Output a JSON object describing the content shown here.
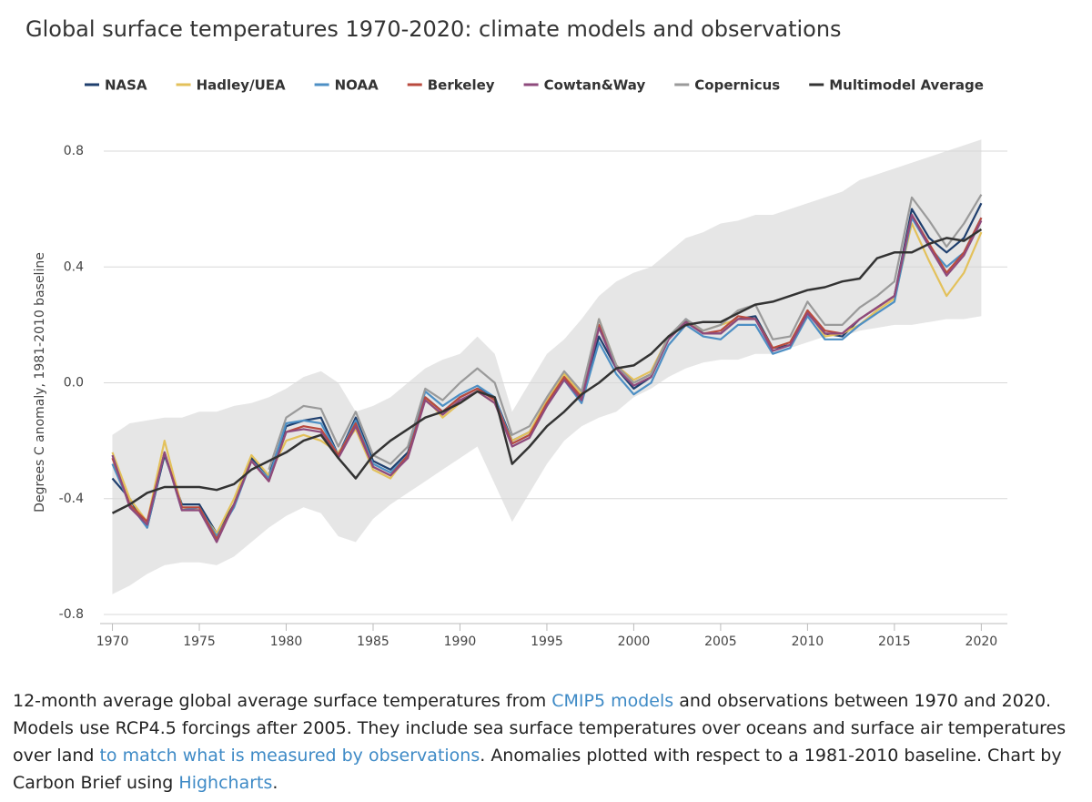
{
  "chart_data": {
    "type": "line",
    "title": "Global surface temperatures 1970-2020: climate models and observations",
    "y_label": "Degrees C anomaly, 1981-2010 baseline",
    "xlim": [
      1969.5,
      2021.5
    ],
    "xticks": [
      1970,
      1975,
      1980,
      1985,
      1990,
      1995,
      2000,
      2005,
      2010,
      2015,
      2020
    ],
    "ylim": [
      -0.8,
      0.8
    ],
    "yticks": [
      -0.8,
      -0.4,
      {
        "value": 0,
        "label": "0.0"
      },
      0.4,
      0.8
    ],
    "grid": true,
    "x": [
      1970,
      1971,
      1972,
      1973,
      1974,
      1975,
      1976,
      1977,
      1978,
      1979,
      1980,
      1981,
      1982,
      1983,
      1984,
      1985,
      1986,
      1987,
      1988,
      1989,
      1990,
      1991,
      1992,
      1993,
      1994,
      1995,
      1996,
      1997,
      1998,
      1999,
      2000,
      2001,
      2002,
      2003,
      2004,
      2005,
      2006,
      2007,
      2008,
      2009,
      2010,
      2011,
      2012,
      2013,
      2014,
      2015,
      2016,
      2017,
      2018,
      2019,
      2020
    ],
    "band": {
      "color": "#e6e6e6",
      "upper": [
        -0.18,
        -0.14,
        -0.13,
        -0.12,
        -0.12,
        -0.1,
        -0.1,
        -0.08,
        -0.07,
        -0.05,
        -0.02,
        0.02,
        0.04,
        0.0,
        -0.1,
        -0.08,
        -0.05,
        0.0,
        0.05,
        0.08,
        0.1,
        0.16,
        0.1,
        -0.1,
        0.0,
        0.1,
        0.15,
        0.22,
        0.3,
        0.35,
        0.38,
        0.4,
        0.45,
        0.5,
        0.52,
        0.55,
        0.56,
        0.58,
        0.58,
        0.6,
        0.62,
        0.64,
        0.66,
        0.7,
        0.72,
        0.74,
        0.76,
        0.78,
        0.8,
        0.82,
        0.84
      ],
      "lower": [
        -0.73,
        -0.7,
        -0.66,
        -0.63,
        -0.62,
        -0.62,
        -0.63,
        -0.6,
        -0.55,
        -0.5,
        -0.46,
        -0.43,
        -0.45,
        -0.53,
        -0.55,
        -0.47,
        -0.42,
        -0.38,
        -0.34,
        -0.3,
        -0.26,
        -0.22,
        -0.35,
        -0.48,
        -0.38,
        -0.28,
        -0.2,
        -0.15,
        -0.12,
        -0.1,
        -0.05,
        -0.02,
        0.02,
        0.05,
        0.07,
        0.08,
        0.08,
        0.1,
        0.1,
        0.12,
        0.14,
        0.16,
        0.16,
        0.18,
        0.19,
        0.2,
        0.2,
        0.21,
        0.22,
        0.22,
        0.23
      ]
    },
    "series": [
      {
        "name": "NASA",
        "color": "#1f3f6e",
        "values": [
          -0.33,
          -0.4,
          -0.5,
          -0.25,
          -0.42,
          -0.42,
          -0.52,
          -0.42,
          -0.26,
          -0.32,
          -0.15,
          -0.13,
          -0.12,
          -0.25,
          -0.12,
          -0.27,
          -0.3,
          -0.24,
          -0.05,
          -0.1,
          -0.05,
          -0.02,
          -0.05,
          -0.2,
          -0.17,
          -0.07,
          0.02,
          -0.06,
          0.16,
          0.05,
          -0.02,
          0.02,
          0.15,
          0.22,
          0.17,
          0.17,
          0.22,
          0.23,
          0.12,
          0.13,
          0.25,
          0.17,
          0.16,
          0.22,
          0.26,
          0.3,
          0.6,
          0.5,
          0.45,
          0.5,
          0.62
        ]
      },
      {
        "name": "Hadley/UEA",
        "color": "#e3c15b",
        "values": [
          -0.24,
          -0.4,
          -0.48,
          -0.2,
          -0.43,
          -0.44,
          -0.52,
          -0.4,
          -0.25,
          -0.32,
          -0.2,
          -0.18,
          -0.2,
          -0.24,
          -0.16,
          -0.3,
          -0.33,
          -0.25,
          -0.05,
          -0.12,
          -0.07,
          -0.03,
          -0.07,
          -0.2,
          -0.17,
          -0.06,
          0.03,
          -0.04,
          0.22,
          0.06,
          0.01,
          0.04,
          0.16,
          0.21,
          0.18,
          0.2,
          0.22,
          0.22,
          0.12,
          0.14,
          0.25,
          0.16,
          0.17,
          0.2,
          0.25,
          0.29,
          0.55,
          0.42,
          0.3,
          0.38,
          0.52
        ]
      },
      {
        "name": "NOAA",
        "color": "#4d8fc4",
        "values": [
          -0.28,
          -0.42,
          -0.5,
          -0.24,
          -0.44,
          -0.43,
          -0.53,
          -0.43,
          -0.27,
          -0.33,
          -0.14,
          -0.13,
          -0.14,
          -0.25,
          -0.13,
          -0.28,
          -0.31,
          -0.25,
          -0.03,
          -0.08,
          -0.04,
          -0.01,
          -0.05,
          -0.21,
          -0.18,
          -0.08,
          0.01,
          -0.07,
          0.14,
          0.03,
          -0.04,
          0.0,
          0.13,
          0.2,
          0.16,
          0.15,
          0.2,
          0.2,
          0.1,
          0.12,
          0.23,
          0.15,
          0.15,
          0.2,
          0.24,
          0.28,
          0.57,
          0.47,
          0.4,
          0.45,
          0.57
        ]
      },
      {
        "name": "Berkeley",
        "color": "#b94a3e",
        "values": [
          -0.26,
          -0.42,
          -0.48,
          -0.24,
          -0.43,
          -0.43,
          -0.54,
          -0.42,
          -0.27,
          -0.34,
          -0.17,
          -0.15,
          -0.16,
          -0.25,
          -0.14,
          -0.29,
          -0.32,
          -0.25,
          -0.05,
          -0.1,
          -0.05,
          -0.02,
          -0.06,
          -0.21,
          -0.18,
          -0.07,
          0.02,
          -0.05,
          0.2,
          0.06,
          0.0,
          0.03,
          0.16,
          0.21,
          0.17,
          0.18,
          0.23,
          0.22,
          0.12,
          0.14,
          0.25,
          0.18,
          0.17,
          0.22,
          0.26,
          0.3,
          0.58,
          0.48,
          0.38,
          0.45,
          0.57
        ]
      },
      {
        "name": "Cowtan&Way",
        "color": "#8e4a7c",
        "values": [
          -0.25,
          -0.43,
          -0.49,
          -0.24,
          -0.44,
          -0.44,
          -0.55,
          -0.42,
          -0.27,
          -0.34,
          -0.17,
          -0.16,
          -0.17,
          -0.26,
          -0.15,
          -0.29,
          -0.32,
          -0.26,
          -0.06,
          -0.11,
          -0.06,
          -0.03,
          -0.07,
          -0.22,
          -0.19,
          -0.08,
          0.01,
          -0.06,
          0.19,
          0.05,
          -0.01,
          0.02,
          0.15,
          0.21,
          0.17,
          0.17,
          0.22,
          0.22,
          0.11,
          0.13,
          0.24,
          0.17,
          0.17,
          0.22,
          0.26,
          0.3,
          0.58,
          0.47,
          0.37,
          0.44,
          0.56
        ]
      },
      {
        "name": "Copernicus",
        "color": "#9a9a9a",
        "values": [
          null,
          null,
          null,
          null,
          null,
          null,
          null,
          null,
          null,
          -0.3,
          -0.12,
          -0.08,
          -0.09,
          -0.22,
          -0.1,
          -0.25,
          -0.28,
          -0.22,
          -0.02,
          -0.06,
          0.0,
          0.05,
          0.0,
          -0.18,
          -0.15,
          -0.05,
          0.04,
          -0.03,
          0.22,
          0.06,
          0.0,
          0.03,
          0.16,
          0.22,
          0.18,
          0.2,
          0.25,
          0.27,
          0.15,
          0.16,
          0.28,
          0.2,
          0.2,
          0.26,
          0.3,
          0.35,
          0.64,
          0.56,
          0.47,
          0.55,
          0.65
        ]
      },
      {
        "name": "Multimodel Average",
        "color": "#333333",
        "values": [
          -0.45,
          -0.42,
          -0.38,
          -0.36,
          -0.36,
          -0.36,
          -0.37,
          -0.35,
          -0.3,
          -0.27,
          -0.24,
          -0.2,
          -0.18,
          -0.26,
          -0.33,
          -0.25,
          -0.2,
          -0.16,
          -0.12,
          -0.1,
          -0.07,
          -0.03,
          -0.05,
          -0.28,
          -0.22,
          -0.15,
          -0.1,
          -0.04,
          0.0,
          0.05,
          0.06,
          0.1,
          0.16,
          0.2,
          0.21,
          0.21,
          0.24,
          0.27,
          0.28,
          0.3,
          0.32,
          0.33,
          0.35,
          0.36,
          0.43,
          0.45,
          0.45,
          0.48,
          0.5,
          0.49,
          0.53
        ]
      }
    ],
    "caption": [
      {
        "text": "12-month average global average surface temperatures from "
      },
      {
        "text": "CMIP5 models",
        "link": true
      },
      {
        "text": " and observations between 1970 and 2020. Models use RCP4.5 forcings after 2005. They include sea surface temperatures over oceans and surface air temperatures over land "
      },
      {
        "text": "to match what is measured by observations",
        "link": true
      },
      {
        "text": ". Anomalies plotted with respect to a 1981-2010 baseline. Chart by Carbon Brief using "
      },
      {
        "text": "Highcharts",
        "link": true
      },
      {
        "text": "."
      }
    ]
  }
}
